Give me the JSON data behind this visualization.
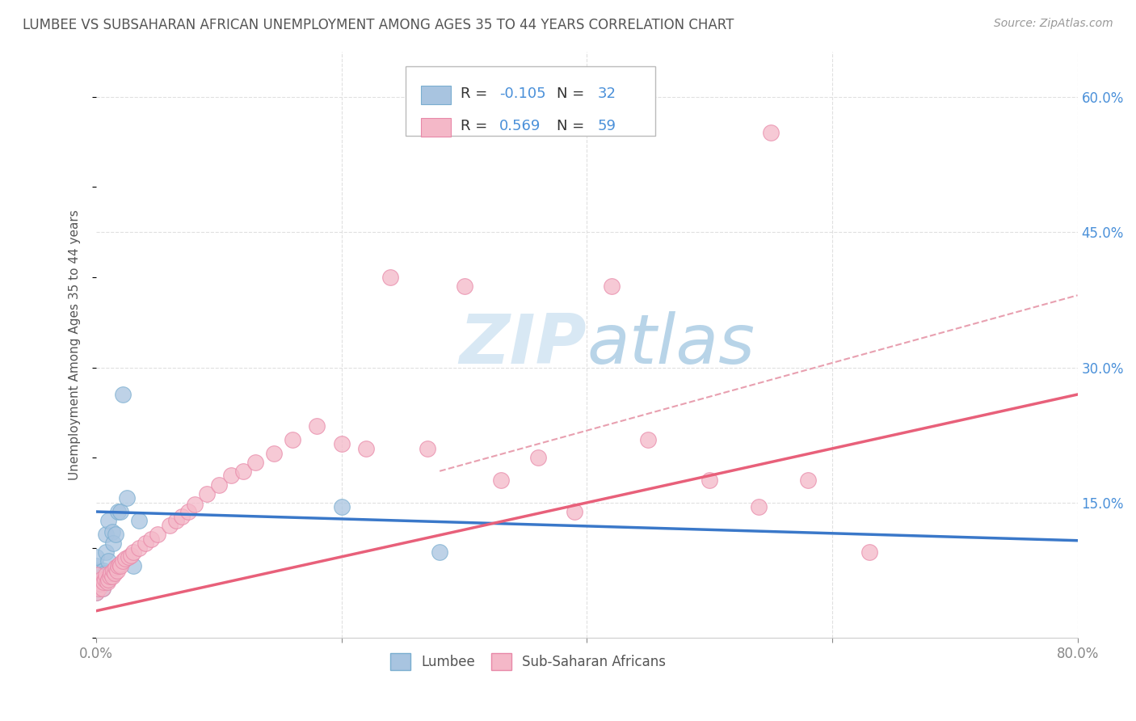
{
  "title": "LUMBEE VS SUBSAHARAN AFRICAN UNEMPLOYMENT AMONG AGES 35 TO 44 YEARS CORRELATION CHART",
  "source": "Source: ZipAtlas.com",
  "ylabel": "Unemployment Among Ages 35 to 44 years",
  "xlim": [
    0.0,
    0.8
  ],
  "ylim": [
    0.0,
    0.65
  ],
  "lumbee_color": "#a8c4e0",
  "lumbee_edge_color": "#7aaed0",
  "subsaharan_color": "#f4b8c8",
  "subsaharan_edge_color": "#e888a8",
  "lumbee_line_color": "#3a78c9",
  "subsaharan_line_color": "#e8607a",
  "dash_line_color": "#e8a0b0",
  "watermark_color": "#d8e8f4",
  "background_color": "#ffffff",
  "grid_color": "#e0e0e0",
  "lumbee_R": "-0.105",
  "lumbee_N": "32",
  "subsaharan_R": "0.569",
  "subsaharan_N": "59",
  "lumbee_scatter_x": [
    0.0,
    0.0,
    0.0,
    0.0,
    0.0,
    0.0,
    0.0,
    0.003,
    0.003,
    0.005,
    0.005,
    0.006,
    0.006,
    0.007,
    0.007,
    0.008,
    0.008,
    0.01,
    0.01,
    0.01,
    0.012,
    0.013,
    0.014,
    0.016,
    0.018,
    0.02,
    0.022,
    0.025,
    0.03,
    0.035,
    0.2,
    0.28
  ],
  "lumbee_scatter_y": [
    0.05,
    0.058,
    0.065,
    0.07,
    0.075,
    0.08,
    0.09,
    0.06,
    0.07,
    0.055,
    0.065,
    0.06,
    0.075,
    0.062,
    0.072,
    0.095,
    0.115,
    0.07,
    0.085,
    0.13,
    0.068,
    0.118,
    0.105,
    0.115,
    0.14,
    0.14,
    0.27,
    0.155,
    0.08,
    0.13,
    0.145,
    0.095
  ],
  "subsaharan_scatter_x": [
    0.0,
    0.0,
    0.0,
    0.002,
    0.003,
    0.004,
    0.005,
    0.006,
    0.007,
    0.008,
    0.009,
    0.01,
    0.011,
    0.012,
    0.013,
    0.014,
    0.015,
    0.016,
    0.017,
    0.018,
    0.019,
    0.02,
    0.022,
    0.024,
    0.026,
    0.028,
    0.03,
    0.035,
    0.04,
    0.045,
    0.05,
    0.06,
    0.065,
    0.07,
    0.075,
    0.08,
    0.09,
    0.1,
    0.11,
    0.12,
    0.13,
    0.145,
    0.16,
    0.18,
    0.2,
    0.22,
    0.24,
    0.27,
    0.3,
    0.33,
    0.36,
    0.39,
    0.42,
    0.45,
    0.5,
    0.54,
    0.58,
    0.63,
    0.55
  ],
  "subsaharan_scatter_y": [
    0.05,
    0.06,
    0.07,
    0.055,
    0.06,
    0.065,
    0.055,
    0.062,
    0.065,
    0.07,
    0.062,
    0.065,
    0.068,
    0.072,
    0.068,
    0.075,
    0.072,
    0.078,
    0.075,
    0.08,
    0.082,
    0.08,
    0.085,
    0.088,
    0.09,
    0.092,
    0.095,
    0.1,
    0.105,
    0.11,
    0.115,
    0.125,
    0.13,
    0.135,
    0.14,
    0.148,
    0.16,
    0.17,
    0.18,
    0.185,
    0.195,
    0.205,
    0.22,
    0.235,
    0.215,
    0.21,
    0.4,
    0.21,
    0.39,
    0.175,
    0.2,
    0.14,
    0.39,
    0.22,
    0.175,
    0.145,
    0.175,
    0.095,
    0.56
  ],
  "lumbee_line_y_start": 0.14,
  "lumbee_line_y_end": 0.108,
  "subsaharan_line_y_start": 0.03,
  "subsaharan_line_y_end": 0.27,
  "dash_line_x_start": 0.28,
  "dash_line_x_end": 0.8,
  "dash_line_y_start": 0.185,
  "dash_line_y_end": 0.38
}
